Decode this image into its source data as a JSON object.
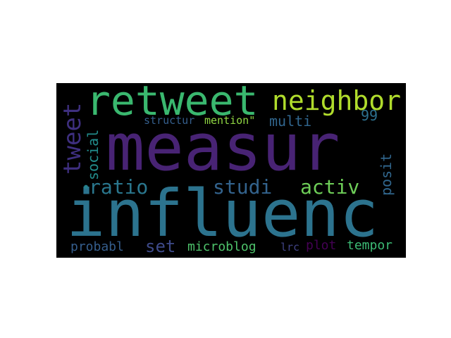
{
  "wordcloud": {
    "words": [
      {
        "text": "measur",
        "color": "#482374"
      },
      {
        "text": "influenc",
        "color": "#2c738e"
      },
      {
        "text": "retweet",
        "color": "#3ab86f"
      },
      {
        "text": "neighbor",
        "color": "#b0dc2c"
      },
      {
        "text": "tweet",
        "color": "#3e2f7f"
      },
      {
        "text": "social",
        "color": "#228c8b"
      },
      {
        "text": "ratio",
        "color": "#2a778e"
      },
      {
        "text": "studi",
        "color": "#33638d"
      },
      {
        "text": "activ",
        "color": "#6ece58"
      },
      {
        "text": "posit",
        "color": "#31678e"
      },
      {
        "text": "multi",
        "color": "#31668e"
      },
      {
        "text": "99",
        "color": "#2d708e"
      },
      {
        "text": "structur",
        "color": "#355f8d"
      },
      {
        "text": "mention\"",
        "color": "#90d743"
      },
      {
        "text": "probabl",
        "color": "#355e8d"
      },
      {
        "text": "set",
        "color": "#3e4a89"
      },
      {
        "text": "microblog",
        "color": "#4ec36b"
      },
      {
        "text": "lrc",
        "color": "#414487"
      },
      {
        "text": "plot",
        "color": "#440154"
      },
      {
        "text": "tempor",
        "color": "#3cbb75"
      },
      {
        "text": "•",
        "color": "#26828e"
      }
    ]
  }
}
